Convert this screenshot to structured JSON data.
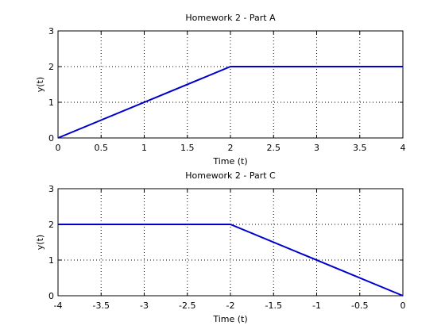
{
  "chart_data": [
    {
      "type": "line",
      "title": "Homework 2 - Part A",
      "xlabel": "Time (t)",
      "ylabel": "y(t)",
      "xlim": [
        0,
        4
      ],
      "ylim": [
        0,
        3
      ],
      "xticks": [
        0,
        0.5,
        1,
        1.5,
        2,
        2.5,
        3,
        3.5,
        4
      ],
      "xtick_labels": [
        "0",
        "0.5",
        "1",
        "1.5",
        "2",
        "2.5",
        "3",
        "3.5",
        "4"
      ],
      "yticks": [
        0,
        1,
        2,
        3
      ],
      "ytick_labels": [
        "0",
        "1",
        "2",
        "3"
      ],
      "grid": true,
      "series": [
        {
          "x": [
            0,
            2,
            4
          ],
          "y": [
            0,
            2,
            2
          ],
          "color": "#0000cc"
        }
      ]
    },
    {
      "type": "line",
      "title": "Homework 2 - Part C",
      "xlabel": "Time (t)",
      "ylabel": "y(t)",
      "xlim": [
        -4,
        0
      ],
      "ylim": [
        0,
        3
      ],
      "xticks": [
        -4,
        -3.5,
        -3,
        -2.5,
        -2,
        -1.5,
        -1,
        -0.5,
        0
      ],
      "xtick_labels": [
        "-4",
        "-3.5",
        "-3",
        "-2.5",
        "-2",
        "-1.5",
        "-1",
        "-0.5",
        "0"
      ],
      "yticks": [
        0,
        1,
        2,
        3
      ],
      "ytick_labels": [
        "0",
        "1",
        "2",
        "3"
      ],
      "grid": true,
      "series": [
        {
          "x": [
            -4,
            -2,
            0
          ],
          "y": [
            2,
            2,
            0
          ],
          "color": "#0000cc"
        }
      ]
    }
  ]
}
